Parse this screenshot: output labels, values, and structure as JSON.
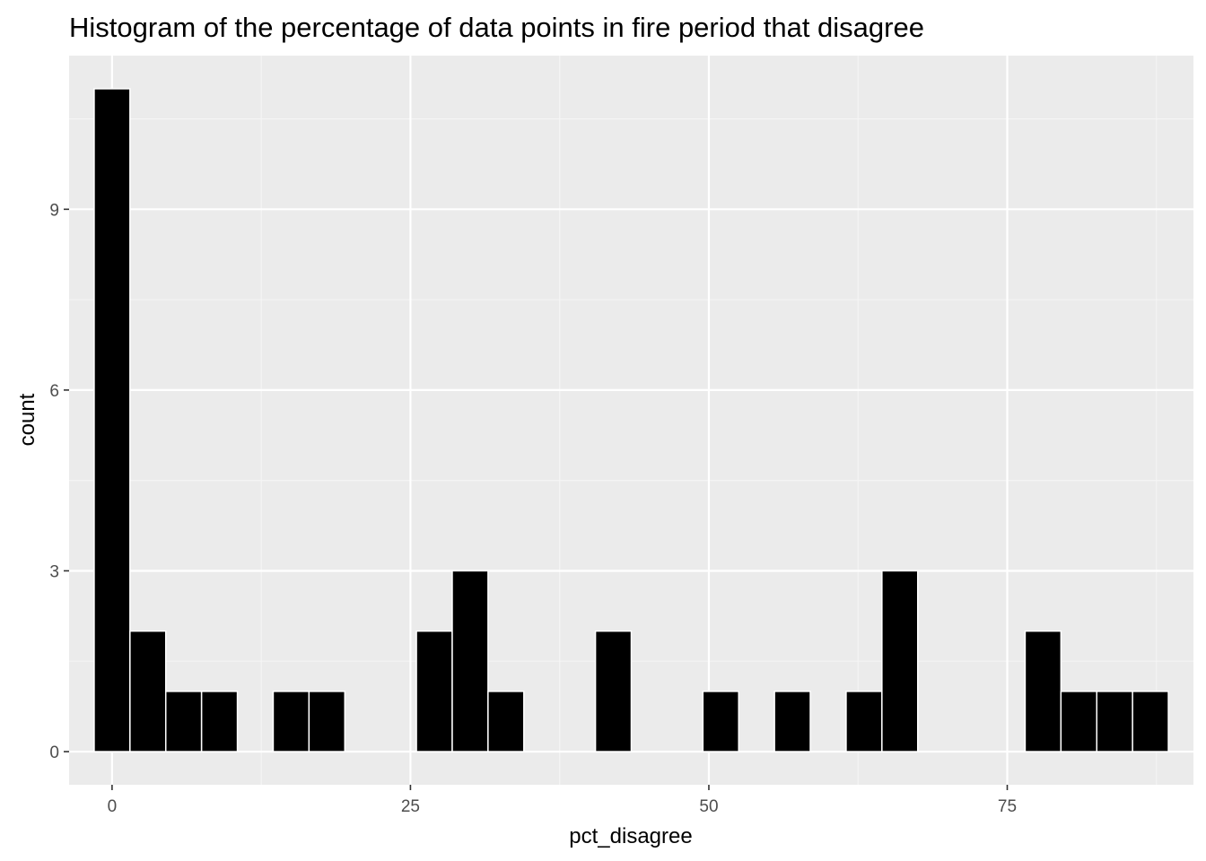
{
  "chart_data": {
    "type": "bar",
    "subtype": "histogram",
    "title": "Histogram of the percentage of data points in fire period that disagree",
    "xlabel": "pct_disagree",
    "ylabel": "count",
    "bin_width": 3,
    "bins": [
      {
        "center": 0,
        "count": 11
      },
      {
        "center": 3,
        "count": 2
      },
      {
        "center": 6,
        "count": 1
      },
      {
        "center": 9,
        "count": 1
      },
      {
        "center": 15,
        "count": 1
      },
      {
        "center": 18,
        "count": 1
      },
      {
        "center": 27,
        "count": 2
      },
      {
        "center": 30,
        "count": 3
      },
      {
        "center": 33,
        "count": 1
      },
      {
        "center": 42,
        "count": 2
      },
      {
        "center": 51,
        "count": 1
      },
      {
        "center": 57,
        "count": 1
      },
      {
        "center": 63,
        "count": 1
      },
      {
        "center": 66,
        "count": 3
      },
      {
        "center": 78,
        "count": 2
      },
      {
        "center": 81,
        "count": 1
      },
      {
        "center": 84,
        "count": 1
      },
      {
        "center": 87,
        "count": 1
      }
    ],
    "xlim": [
      -3.6,
      90.6
    ],
    "ylim": [
      -0.55,
      11.55
    ],
    "x_ticks": [
      0,
      25,
      50,
      75
    ],
    "x_tick_labels": [
      "0",
      "25",
      "50",
      "75"
    ],
    "y_ticks": [
      0,
      3,
      6,
      9
    ],
    "y_tick_labels": [
      "0",
      "3",
      "6",
      "9"
    ],
    "grid": true,
    "colors": {
      "panel_background": "#ebebeb",
      "grid_major": "#ffffff",
      "grid_minor": "#f5f5f5",
      "bar_fill": "#000000",
      "bar_outline": "#ffffff",
      "tick_text": "#4d4d4d",
      "tick_mark": "#333333"
    }
  }
}
